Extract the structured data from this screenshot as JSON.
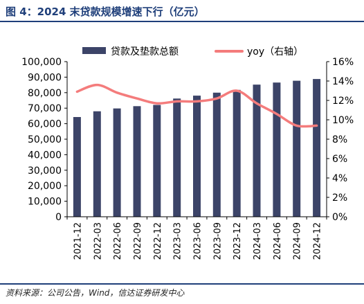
{
  "figure": {
    "title": "图 4：2024 末贷款规模增速下行（亿元）",
    "source": "资料来源：公司公告，Wind，信达证券研发中心"
  },
  "colors": {
    "bar": "#3c4468",
    "line": "#f47c7c",
    "title": "#1f3f7a",
    "axis": "#000000"
  },
  "chart_data": {
    "type": "bar",
    "categories": [
      "2021-12",
      "2022-03",
      "2022-06",
      "2022-09",
      "2022-12",
      "2023-03",
      "2023-06",
      "2023-09",
      "2023-12",
      "2024-03",
      "2024-06",
      "2024-09",
      "2024-12"
    ],
    "series": [
      {
        "name": "贷款及垫款总额",
        "type": "bar",
        "axis": "left",
        "values": [
          64300,
          68000,
          69800,
          71300,
          72100,
          76200,
          78100,
          80000,
          81800,
          85200,
          86500,
          87700,
          88800
        ]
      },
      {
        "name": "yoy（右轴）",
        "type": "line",
        "axis": "right",
        "values": [
          12.9,
          13.6,
          12.8,
          12.2,
          11.7,
          11.9,
          11.9,
          12.2,
          13.0,
          11.7,
          10.6,
          9.4,
          9.4
        ]
      }
    ],
    "y_left": {
      "ylim": [
        0,
        100000
      ],
      "ticks": [
        0,
        10000,
        20000,
        30000,
        40000,
        50000,
        60000,
        70000,
        80000,
        90000,
        100000
      ],
      "tick_labels": [
        "0",
        "10,000",
        "20,000",
        "30,000",
        "40,000",
        "50,000",
        "60,000",
        "70,000",
        "80,000",
        "90,000",
        "100,000"
      ]
    },
    "y_right": {
      "ylim": [
        0,
        16
      ],
      "ticks": [
        0,
        2,
        4,
        6,
        8,
        10,
        12,
        14,
        16
      ],
      "tick_labels": [
        "0%",
        "2%",
        "4%",
        "6%",
        "8%",
        "10%",
        "12%",
        "14%",
        "16%"
      ]
    },
    "grid": false,
    "legend_position": "top"
  }
}
